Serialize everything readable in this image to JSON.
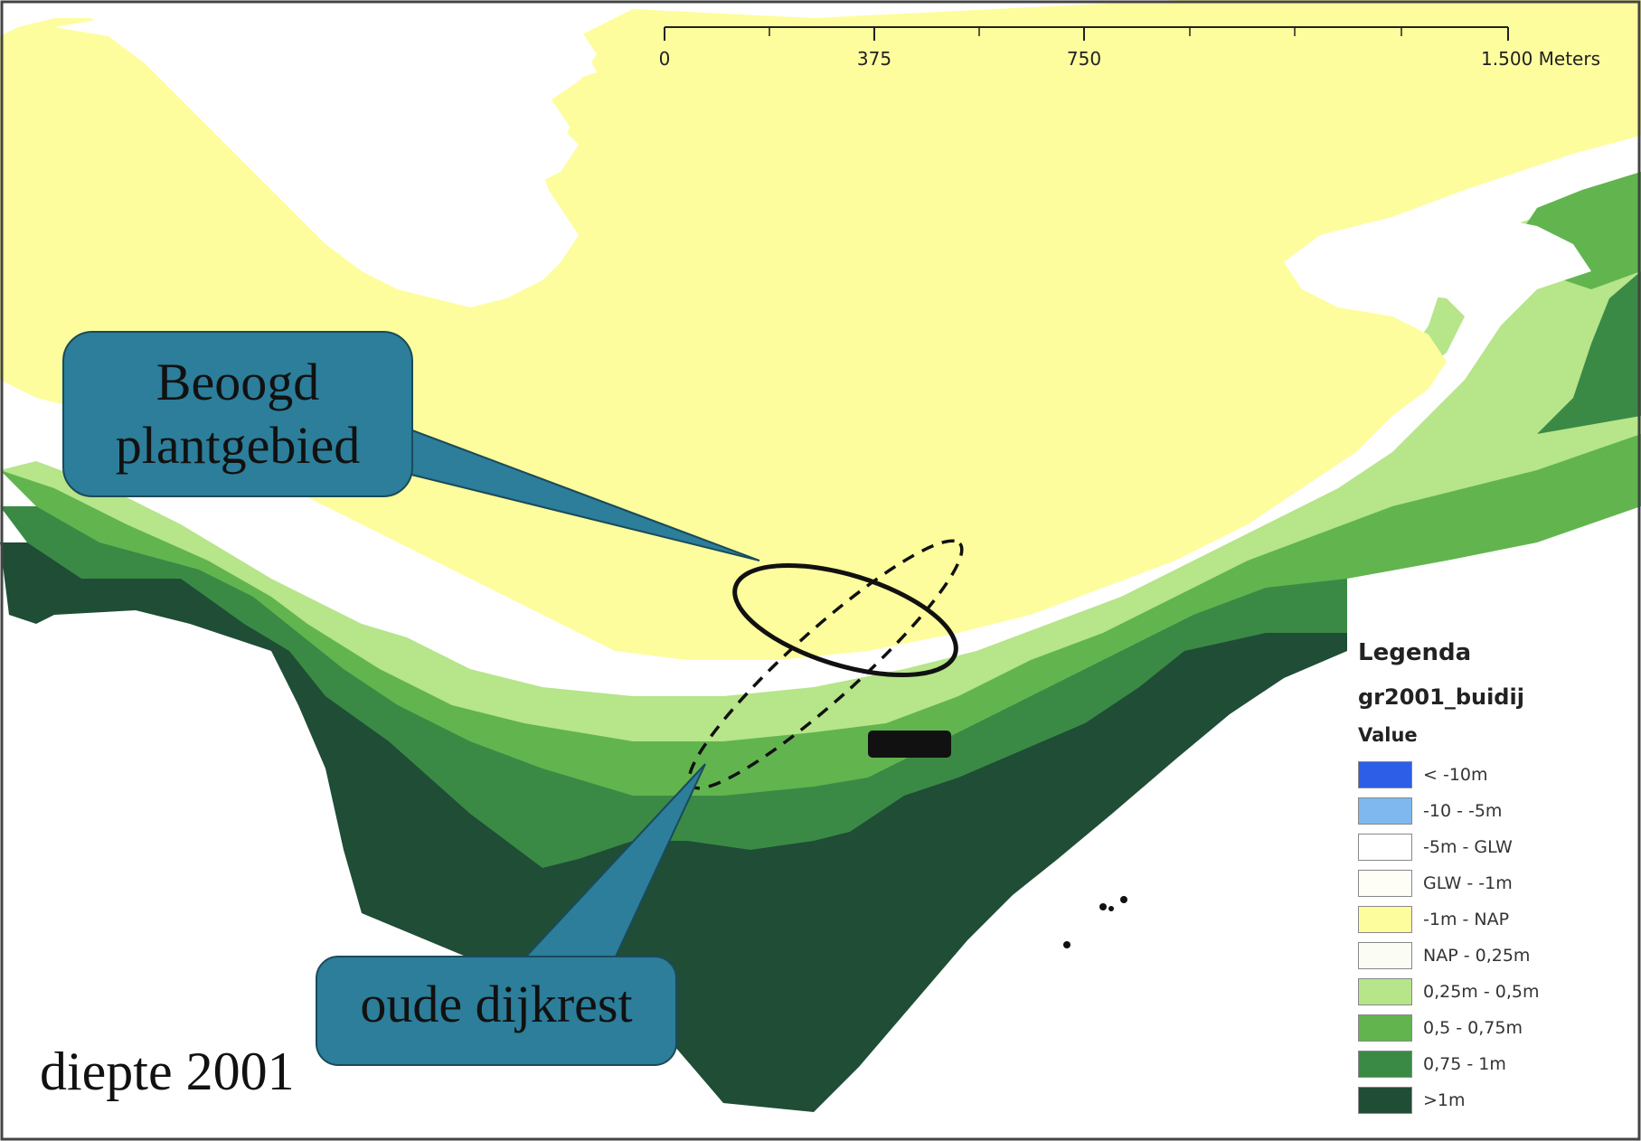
{
  "map_title": "diepte 2001",
  "scale_bar": {
    "labels": [
      "0",
      "375",
      "750",
      "1.500 Meters"
    ]
  },
  "callouts": {
    "planting_area": {
      "line1": "Beoogd",
      "line2": "plantgebied"
    },
    "dike_crest": {
      "label": "oude dijkrest"
    }
  },
  "legend": {
    "title": "Legenda",
    "layer": "gr2001_buidij",
    "field": "Value",
    "items": [
      {
        "label": "< -10m",
        "color": "#2c5ee8"
      },
      {
        "label": "-10 - -5m",
        "color": "#7eb8ef"
      },
      {
        "label": "-5m - GLW",
        "color": "#ffffff"
      },
      {
        "label": "GLW - -1m",
        "color": "#fefef6"
      },
      {
        "label": "-1m - NAP",
        "color": "#fdfd9e"
      },
      {
        "label": "NAP - 0,25m",
        "color": "#fbfdf4"
      },
      {
        "label": "0,25m - 0,5m",
        "color": "#b6e58a"
      },
      {
        "label": "0,5 - 0,75m",
        "color": "#62b44f"
      },
      {
        "label": "0,75 - 1m",
        "color": "#3a8a45"
      },
      {
        "label": ">1m",
        "color": "#1f4d36"
      }
    ]
  },
  "colors": {
    "callout_fill": "#2c7e9a",
    "callout_stroke": "#1b4a5a"
  }
}
